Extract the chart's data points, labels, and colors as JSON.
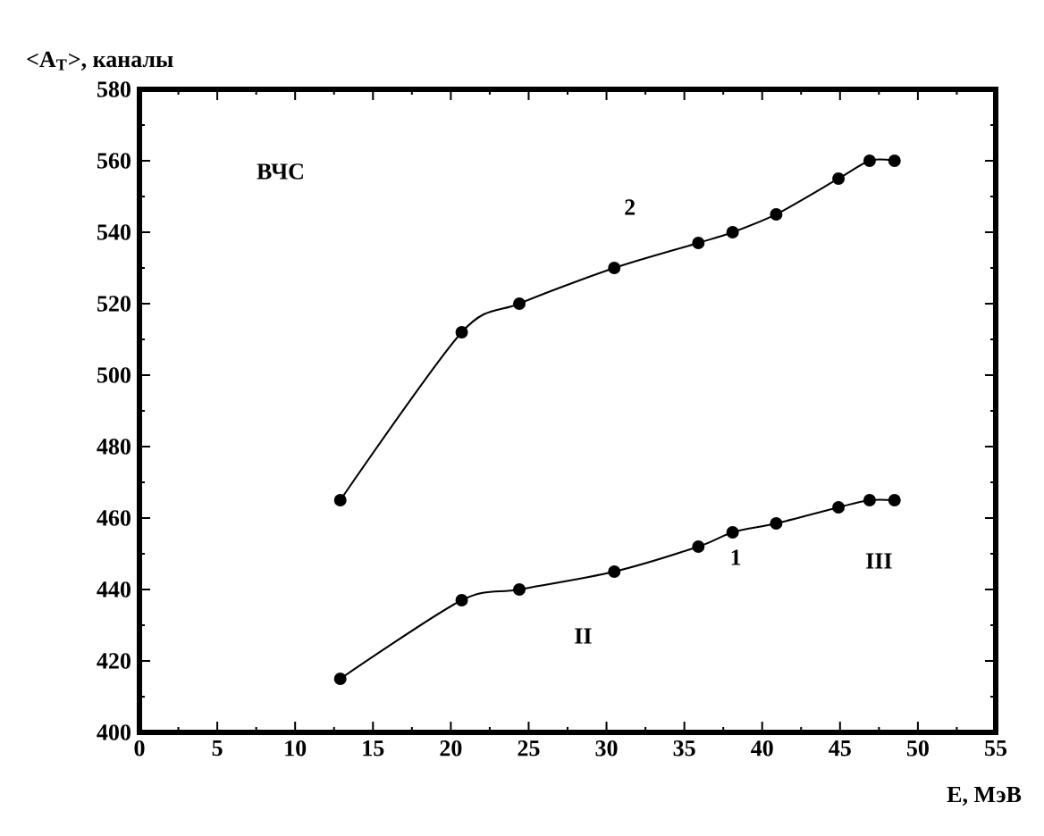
{
  "chart_data": {
    "type": "line",
    "xlabel": "E, МэВ",
    "ylabel": "<A$_{T}$>, каналы",
    "annotations": [
      "ВЧС",
      "II",
      "III"
    ],
    "xlim": [
      0,
      55
    ],
    "xticks": [
      0,
      5,
      10,
      15,
      20,
      25,
      30,
      35,
      40,
      45,
      50,
      55
    ],
    "ylim": [
      400,
      580
    ],
    "yticks": [
      400,
      420,
      440,
      460,
      480,
      500,
      520,
      540,
      560,
      580
    ],
    "marker": "circle",
    "line_style": "solid",
    "grid": false,
    "legend": false,
    "series": [
      {
        "name": "1",
        "color": "#000000",
        "x": [
          12.9,
          20.7,
          24.4,
          30.5,
          35.9,
          38.1,
          40.9,
          44.9,
          46.9,
          48.5
        ],
        "values": [
          415,
          437,
          440,
          445,
          452,
          456,
          458.5,
          463,
          465,
          465
        ]
      },
      {
        "name": "2",
        "color": "#000000",
        "x": [
          12.9,
          20.7,
          24.4,
          30.5,
          35.9,
          38.1,
          40.9,
          44.9,
          46.9,
          48.5
        ],
        "values": [
          465,
          512,
          520,
          530,
          537,
          540,
          545,
          555,
          560,
          560
        ]
      }
    ]
  }
}
